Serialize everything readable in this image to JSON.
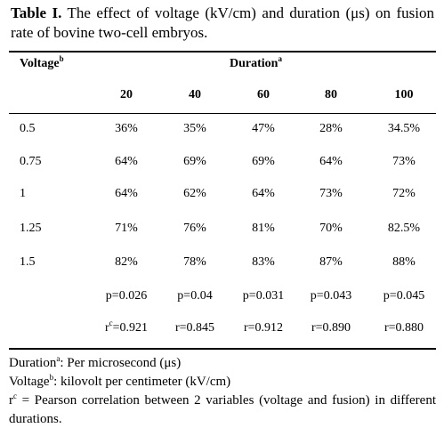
{
  "title": {
    "label": "Table I.",
    "text": "The effect of voltage (kV/cm) and duration (μs) on fusion rate of bovine two-cell embryos."
  },
  "table": {
    "row_header": {
      "text": "Voltage",
      "sup": "b"
    },
    "column_group": {
      "text": "Duration",
      "sup": "a"
    },
    "columns": [
      "20",
      "40",
      "60",
      "80",
      "100"
    ],
    "rows": [
      [
        "0.5",
        "36%",
        "35%",
        "47%",
        "28%",
        "34.5%"
      ],
      [
        "0.75",
        "64%",
        "69%",
        "69%",
        "64%",
        "73%"
      ],
      [
        "1",
        "64%",
        "62%",
        "64%",
        "73%",
        "72%"
      ],
      [
        "1.25",
        "71%",
        "76%",
        "81%",
        "70%",
        "82.5%"
      ],
      [
        "1.5",
        "82%",
        "78%",
        "83%",
        "87%",
        "88%"
      ]
    ],
    "p_values": [
      "p=0.026",
      "p=0.04",
      "p=0.031",
      "p=0.043",
      "p=0.045"
    ],
    "r_first": {
      "base": "r",
      "sup": "c",
      "value": "=0.921"
    },
    "r_values": [
      "r=0.845",
      "r=0.912",
      "r=0.890",
      "r=0.880"
    ]
  },
  "footnotes": [
    {
      "term": "Duration",
      "sup": "a",
      "text": ": Per microsecond (μs)"
    },
    {
      "term": "Voltage",
      "sup": "b",
      "text": ": kilovolt per centimeter (kV/cm)"
    },
    {
      "term": "r",
      "sup": "c",
      "text": " = Pearson correlation between 2 variables (voltage and fusion) in different durations."
    }
  ]
}
